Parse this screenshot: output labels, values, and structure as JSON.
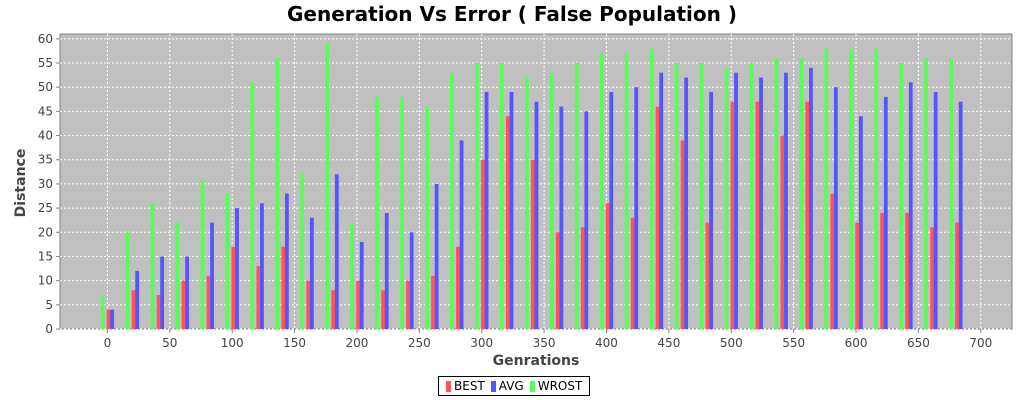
{
  "chart_data": {
    "type": "bar",
    "title": "Generation Vs Error ( False Population )",
    "xlabel": "Genrations",
    "ylabel": "Distance",
    "xlim": [
      -38,
      725
    ],
    "ylim": [
      0,
      61
    ],
    "xticks": [
      0,
      50,
      100,
      150,
      200,
      250,
      300,
      350,
      400,
      450,
      500,
      550,
      600,
      650,
      700
    ],
    "yticks": [
      0,
      5,
      10,
      15,
      20,
      25,
      30,
      35,
      40,
      45,
      50,
      55,
      60
    ],
    "grid": true,
    "legend_position": "bottom",
    "x": [
      0,
      20,
      40,
      60,
      80,
      100,
      120,
      140,
      160,
      180,
      200,
      220,
      240,
      260,
      280,
      300,
      320,
      340,
      360,
      380,
      400,
      420,
      440,
      460,
      480,
      500,
      520,
      540,
      560,
      580,
      600,
      620,
      640,
      660,
      680
    ],
    "series": [
      {
        "name": "BEST",
        "color": "#ff5555",
        "values": [
          4,
          8,
          7,
          10,
          11,
          17,
          13,
          17,
          10,
          8,
          10,
          8,
          10,
          11,
          17,
          35,
          44,
          35,
          20,
          21,
          26,
          23,
          46,
          39,
          22,
          47,
          47,
          40,
          47,
          28,
          22,
          24,
          24,
          21,
          22
        ]
      },
      {
        "name": "AVG",
        "color": "#5555ff",
        "values": [
          4,
          12,
          15,
          15,
          22,
          25,
          26,
          28,
          23,
          32,
          18,
          24,
          20,
          30,
          39,
          49,
          49,
          47,
          46,
          45,
          49,
          50,
          53,
          52,
          49,
          53,
          52,
          53,
          54,
          50,
          44,
          48,
          51,
          49,
          47
        ]
      },
      {
        "name": "WROST",
        "color": "#55ff55",
        "values": [
          7,
          20,
          26,
          22,
          31,
          28,
          51,
          56,
          32,
          59,
          22,
          48,
          48,
          46,
          53,
          55,
          55,
          52,
          53,
          55,
          57,
          57,
          58,
          55,
          55,
          54,
          55,
          56,
          56,
          58,
          58,
          58,
          55,
          56,
          56
        ]
      }
    ]
  }
}
